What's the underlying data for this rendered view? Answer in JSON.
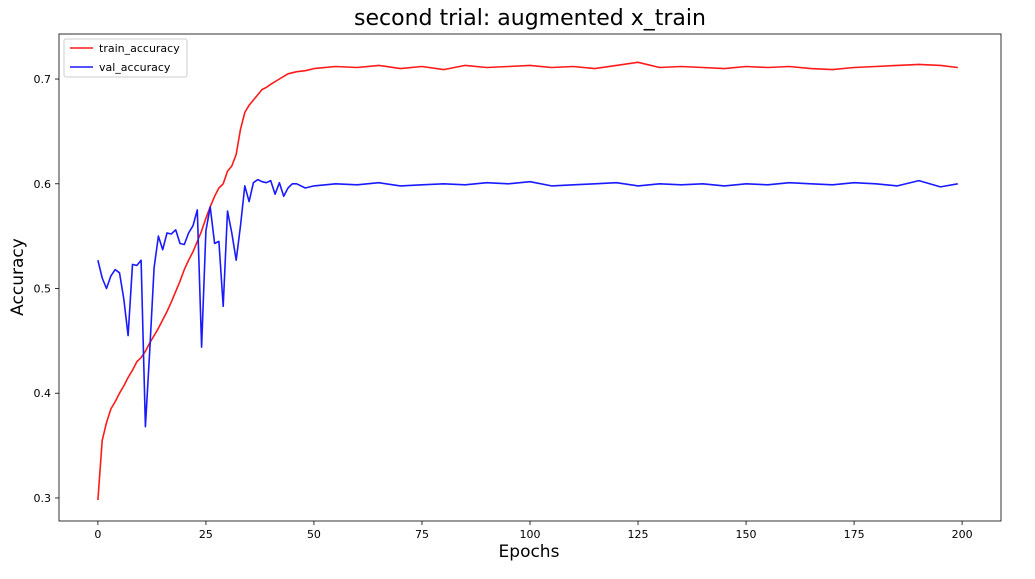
{
  "chart_data": {
    "type": "line",
    "title": "second trial: augmented x_train",
    "xlabel": "Epochs",
    "ylabel": "Accuracy",
    "xlim": [
      -9,
      209
    ],
    "ylim": [
      0.278,
      0.743
    ],
    "xticks": [
      0,
      25,
      50,
      75,
      100,
      125,
      150,
      175,
      200
    ],
    "yticks": [
      0.3,
      0.4,
      0.5,
      0.6,
      0.7
    ],
    "yticks_text": [
      "0.3",
      "0.4",
      "0.5",
      "0.6",
      "0.7"
    ],
    "grid": false,
    "legend_placement": "upper-left",
    "series": [
      {
        "name": "train_accuracy",
        "color": "#ff1a1a",
        "x": [
          0,
          1,
          2,
          3,
          4,
          5,
          6,
          7,
          8,
          9,
          10,
          11,
          12,
          13,
          14,
          15,
          16,
          17,
          18,
          19,
          20,
          21,
          22,
          23,
          24,
          25,
          26,
          27,
          28,
          29,
          30,
          31,
          32,
          33,
          34,
          35,
          36,
          37,
          38,
          39,
          40,
          42,
          44,
          46,
          48,
          50,
          55,
          60,
          65,
          70,
          75,
          80,
          85,
          90,
          95,
          100,
          105,
          110,
          115,
          120,
          125,
          130,
          135,
          140,
          145,
          150,
          155,
          160,
          165,
          170,
          175,
          180,
          185,
          190,
          195,
          199
        ],
        "y": [
          0.298,
          0.355,
          0.372,
          0.385,
          0.392,
          0.4,
          0.407,
          0.415,
          0.422,
          0.43,
          0.434,
          0.44,
          0.448,
          0.455,
          0.462,
          0.47,
          0.478,
          0.487,
          0.497,
          0.507,
          0.518,
          0.527,
          0.535,
          0.545,
          0.555,
          0.567,
          0.578,
          0.588,
          0.596,
          0.6,
          0.612,
          0.617,
          0.628,
          0.652,
          0.668,
          0.675,
          0.68,
          0.685,
          0.69,
          0.692,
          0.695,
          0.7,
          0.705,
          0.707,
          0.708,
          0.71,
          0.712,
          0.711,
          0.713,
          0.71,
          0.712,
          0.709,
          0.713,
          0.711,
          0.712,
          0.713,
          0.711,
          0.712,
          0.71,
          0.713,
          0.716,
          0.711,
          0.712,
          0.711,
          0.71,
          0.712,
          0.711,
          0.712,
          0.71,
          0.709,
          0.711,
          0.712,
          0.713,
          0.714,
          0.713,
          0.711
        ]
      },
      {
        "name": "val_accuracy",
        "color": "#1a1aff",
        "x": [
          0,
          1,
          2,
          3,
          4,
          5,
          6,
          7,
          8,
          9,
          10,
          11,
          12,
          13,
          14,
          15,
          16,
          17,
          18,
          19,
          20,
          21,
          22,
          23,
          24,
          25,
          26,
          27,
          28,
          29,
          30,
          31,
          32,
          33,
          34,
          35,
          36,
          37,
          38,
          39,
          40,
          41,
          42,
          43,
          44,
          45,
          46,
          48,
          50,
          55,
          60,
          65,
          70,
          75,
          80,
          85,
          90,
          95,
          100,
          105,
          110,
          115,
          120,
          125,
          130,
          135,
          140,
          145,
          150,
          155,
          160,
          165,
          170,
          175,
          180,
          185,
          190,
          195,
          199
        ],
        "y": [
          0.527,
          0.51,
          0.5,
          0.512,
          0.518,
          0.515,
          0.49,
          0.455,
          0.523,
          0.522,
          0.527,
          0.368,
          0.44,
          0.52,
          0.55,
          0.537,
          0.553,
          0.552,
          0.556,
          0.543,
          0.542,
          0.553,
          0.56,
          0.575,
          0.444,
          0.555,
          0.578,
          0.543,
          0.545,
          0.483,
          0.574,
          0.553,
          0.527,
          0.56,
          0.598,
          0.583,
          0.601,
          0.604,
          0.602,
          0.601,
          0.603,
          0.59,
          0.601,
          0.588,
          0.596,
          0.6,
          0.6,
          0.596,
          0.598,
          0.6,
          0.599,
          0.601,
          0.598,
          0.599,
          0.6,
          0.599,
          0.601,
          0.6,
          0.602,
          0.598,
          0.599,
          0.6,
          0.601,
          0.598,
          0.6,
          0.599,
          0.6,
          0.598,
          0.6,
          0.599,
          0.601,
          0.6,
          0.599,
          0.601,
          0.6,
          0.598,
          0.603,
          0.597,
          0.6
        ]
      }
    ]
  }
}
